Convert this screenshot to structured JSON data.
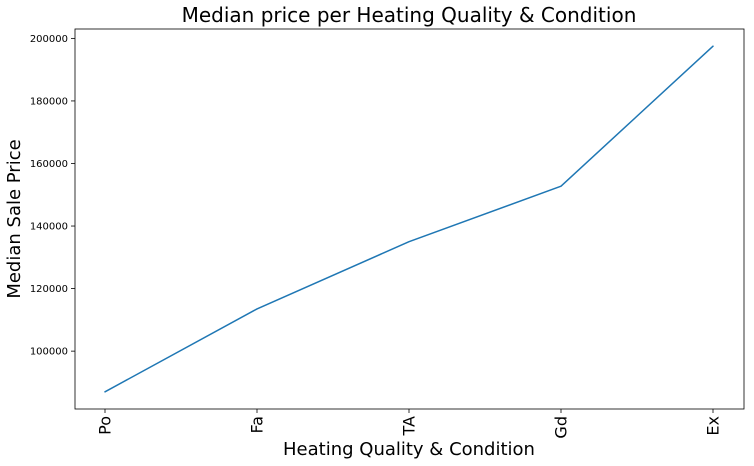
{
  "chart_data": {
    "type": "line",
    "title": "Median price per Heating Quality & Condition",
    "xlabel": "Heating Quality & Condition",
    "ylabel": "Median Sale Price",
    "categories": [
      "Po",
      "Fa",
      "TA",
      "Gd",
      "Ex"
    ],
    "series": [
      {
        "values": [
          87000,
          113500,
          135000,
          152750,
          197500
        ]
      }
    ],
    "ylim": [
      81500,
      203000
    ],
    "yticks": [
      100000,
      120000,
      140000,
      160000,
      180000,
      200000
    ],
    "grid": false,
    "line_color": "#1f77b4"
  }
}
